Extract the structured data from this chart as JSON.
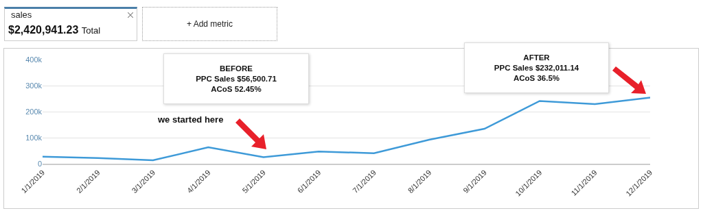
{
  "chart_data": {
    "type": "line",
    "categories": [
      "1/1/2019",
      "2/1/2019",
      "3/1/2019",
      "4/1/2019",
      "5/1/2019",
      "6/1/2019",
      "7/1/2019",
      "8/1/2019",
      "9/1/2019",
      "10/1/2019",
      "11/1/2019",
      "12/1/2019"
    ],
    "series": [
      {
        "color": "#3e9ad8",
        "values": [
          27000,
          22000,
          13000,
          63000,
          25000,
          47000,
          40000,
          92000,
          134000,
          241000,
          229000,
          254000
        ]
      }
    ],
    "ylim": [
      0,
      400000
    ],
    "yticks": [
      {
        "value": 0,
        "label": "0"
      },
      {
        "value": 100000,
        "label": "100k"
      },
      {
        "value": 200000,
        "label": "200k"
      },
      {
        "value": 300000,
        "label": "300k"
      },
      {
        "value": 400000,
        "label": "400k"
      }
    ],
    "grid": "y",
    "legend": false,
    "marker": "none",
    "line_style": "solid",
    "annotations": [
      "sales",
      "$2,420,941.23",
      "Total",
      "+ Add metric",
      "BEFORE\nPPC Sales $56,500.71\nACoS 52.45%",
      "AFTER\nPPC Sales $232,011.14\nACoS 36.5%",
      "we started here"
    ]
  }
}
